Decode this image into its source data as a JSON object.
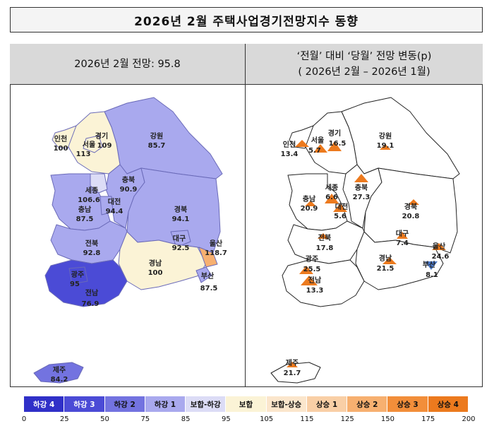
{
  "title": "2026년  2월  주택사업경기전망지수  동향",
  "left_panel": {
    "header": "2026년  2월  전망:  95.8",
    "regions": {
      "incheon": {
        "name": "인천",
        "value": "100"
      },
      "seoul": {
        "name": "서울",
        "value": "113"
      },
      "gyeonggi": {
        "name": "경기",
        "value": "109"
      },
      "gangwon": {
        "name": "강원",
        "value": "85.7"
      },
      "chungbuk": {
        "name": "충북",
        "value": "90.9"
      },
      "sejong": {
        "name": "세종",
        "value": "106.6"
      },
      "daejeon": {
        "name": "대전",
        "value": "94.4"
      },
      "chungnam": {
        "name": "충남",
        "value": "87.5"
      },
      "gyeongbuk": {
        "name": "경북",
        "value": "94.1"
      },
      "jeonbuk": {
        "name": "전북",
        "value": "92.8"
      },
      "daegu": {
        "name": "대구",
        "value": "92.5"
      },
      "ulsan": {
        "name": "울산",
        "value": "118.7"
      },
      "gyeongnam": {
        "name": "경남",
        "value": "100"
      },
      "busan": {
        "name": "부산",
        "value": "87.5"
      },
      "gwangju": {
        "name": "광주",
        "value": "95"
      },
      "jeonnam": {
        "name": "전남",
        "value": "76.9"
      },
      "jeju": {
        "name": "제주",
        "value": "84.2"
      }
    }
  },
  "right_panel": {
    "header_line1": "‘전월’  대비  ‘당월’  전망  변동(p)",
    "header_line2": "(  2026년  2월  –   2026년  1월)",
    "regions": {
      "incheon": {
        "name": "인천",
        "value": "13.4"
      },
      "seoul": {
        "name": "서울",
        "value": "5.7"
      },
      "gyeonggi": {
        "name": "경기",
        "value": "16.5"
      },
      "gangwon": {
        "name": "강원",
        "value": "19.1"
      },
      "chungnam": {
        "name": "충남",
        "value": "20.9"
      },
      "sejong": {
        "name": "세종",
        "value": "6.6"
      },
      "chungbuk": {
        "name": "충북",
        "value": "27.3"
      },
      "daejeon": {
        "name": "대전",
        "value": "5.6"
      },
      "gyeongbuk": {
        "name": "경북",
        "value": "20.8"
      },
      "jeonbuk": {
        "name": "전북",
        "value": "17.8"
      },
      "daegu": {
        "name": "대구",
        "value": "7.4"
      },
      "gwangju": {
        "name": "광주",
        "value": "25.5"
      },
      "gyeongnam": {
        "name": "경남",
        "value": "21.5"
      },
      "ulsan": {
        "name": "울산",
        "value": "24.6"
      },
      "busan": {
        "name": "부산",
        "value": "8.1"
      },
      "jeonnam": {
        "name": "전남",
        "value": "13.3"
      },
      "jeju": {
        "name": "제주",
        "value": "21.7"
      }
    }
  },
  "legend": {
    "items": [
      {
        "label": "하강 4",
        "color": "#3030c8",
        "text_color": "#ffffff"
      },
      {
        "label": "하강 3",
        "color": "#4b4bd6",
        "text_color": "#ffffff"
      },
      {
        "label": "하강 2",
        "color": "#7373e0",
        "text_color": "#111111"
      },
      {
        "label": "하강 1",
        "color": "#a9a9ee",
        "text_color": "#111111"
      },
      {
        "label": "보합-하강",
        "color": "#dcdcf6",
        "text_color": "#111111"
      },
      {
        "label": "보합",
        "color": "#fbf3d6",
        "text_color": "#111111"
      },
      {
        "label": "보합-상승",
        "color": "#fbe6cc",
        "text_color": "#111111"
      },
      {
        "label": "상승 1",
        "color": "#f9cfa6",
        "text_color": "#111111"
      },
      {
        "label": "상승 2",
        "color": "#f7b070",
        "text_color": "#111111"
      },
      {
        "label": "상승 3",
        "color": "#f28e3a",
        "text_color": "#111111"
      },
      {
        "label": "상승 4",
        "color": "#ec7a1e",
        "text_color": "#111111"
      }
    ],
    "ticks": [
      "0",
      "25",
      "50",
      "75",
      "85",
      "95",
      "105",
      "115",
      "125",
      "150",
      "175",
      "200"
    ]
  }
}
